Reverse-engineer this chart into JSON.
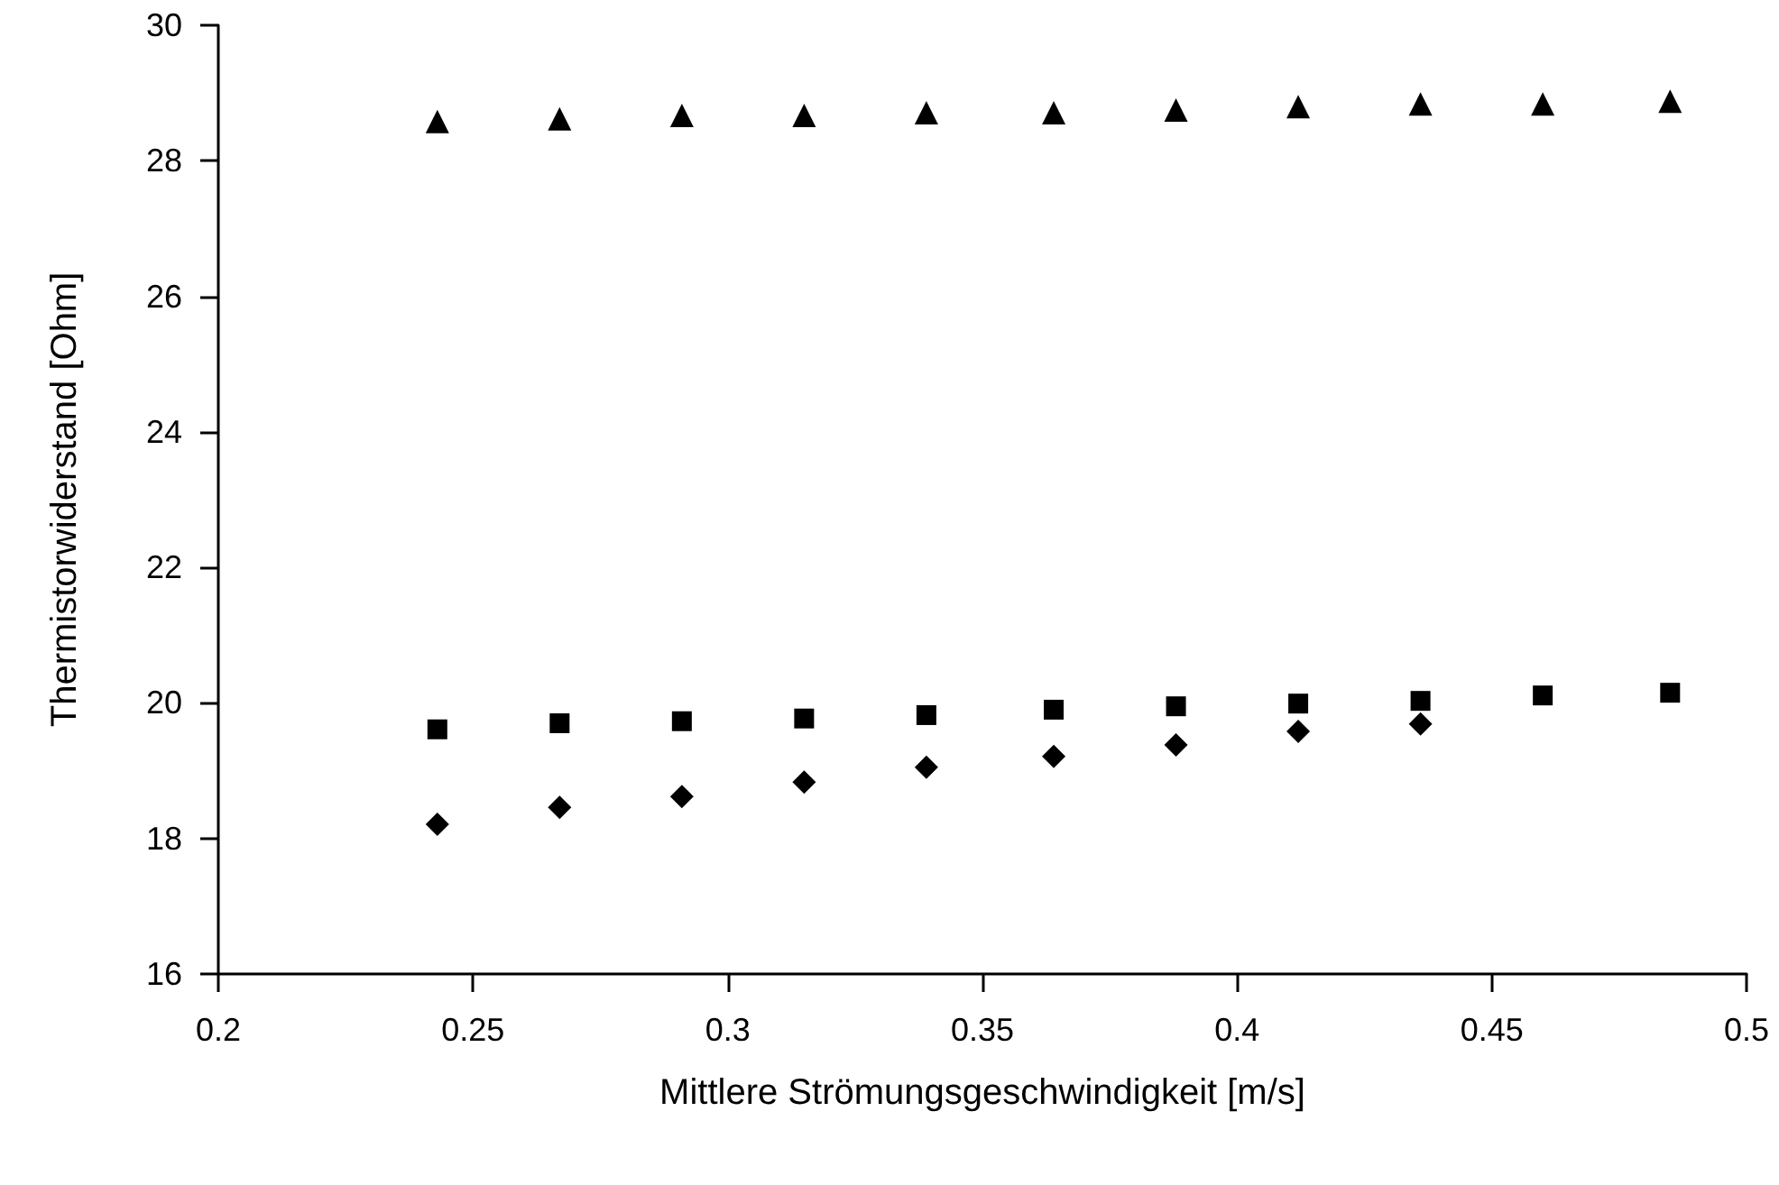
{
  "chart_data": {
    "type": "scatter",
    "xlabel": "Mittlere Strömungsgeschwindigkeit [m/s]",
    "ylabel": "Thermistorwiderstand [Ohm]",
    "x": [
      0.243,
      0.267,
      0.291,
      0.315,
      0.339,
      0.364,
      0.388,
      0.412,
      0.436,
      0.46,
      0.485
    ],
    "series": [
      {
        "color": "#000000",
        "marker": "triangle",
        "values": [
          28.58,
          28.62,
          28.67,
          28.67,
          28.71,
          28.71,
          28.75,
          28.8,
          28.84,
          28.84,
          28.88
        ]
      },
      {
        "color": "#000000",
        "marker": "square",
        "values": [
          19.61,
          19.7,
          19.73,
          19.77,
          19.82,
          19.9,
          19.95,
          19.99,
          20.03,
          20.11,
          20.15
        ]
      },
      {
        "color": "#000000",
        "marker": "diamond",
        "values": [
          18.21,
          18.46,
          18.62,
          18.83,
          19.05,
          19.21,
          19.38,
          19.58,
          19.69,
          null,
          null
        ]
      }
    ],
    "xlim": [
      0.2,
      0.5
    ],
    "xticks": [
      0.2,
      0.25,
      0.3,
      0.35,
      0.4,
      0.45,
      0.5
    ],
    "ylim": [
      16,
      30
    ],
    "yticks": [
      16,
      18,
      20,
      22,
      24,
      26,
      28,
      30
    ]
  }
}
